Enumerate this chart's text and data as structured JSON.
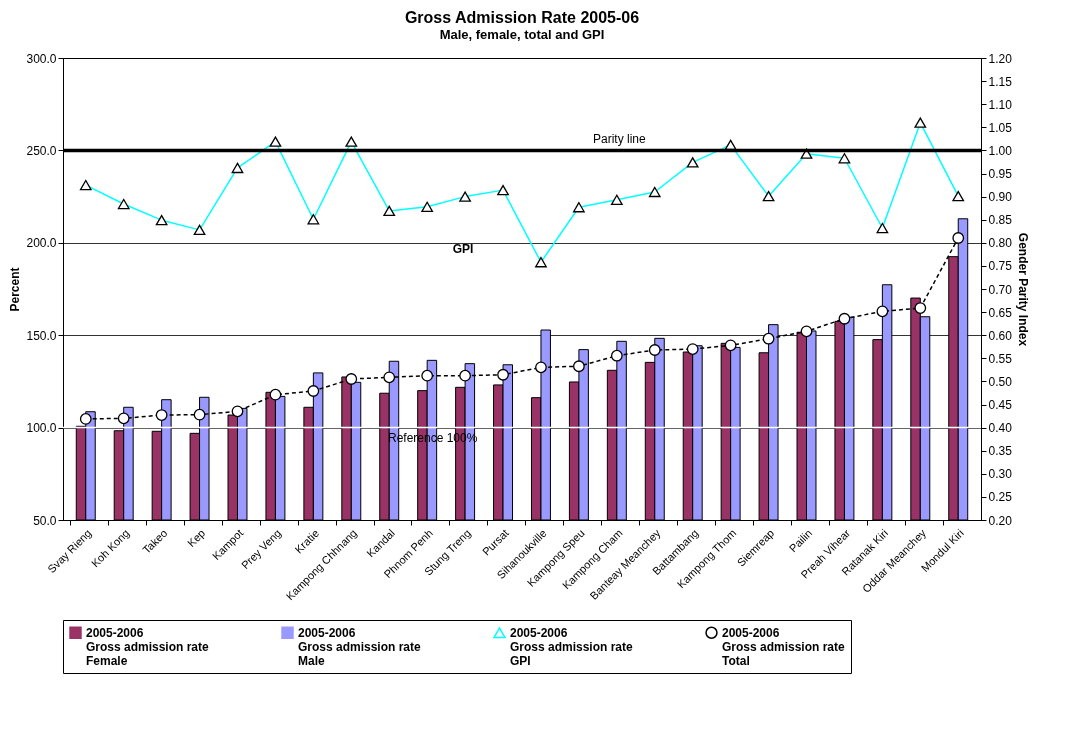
{
  "chart_data": {
    "type": "bar",
    "title": "Gross Admission Rate 2005-06",
    "subtitle": "Male, female, total and GPI",
    "ylabel": "Percent",
    "y2label": "Gender Parity Index",
    "categories": [
      "Svay Rieng",
      "Koh Kong",
      "Takeo",
      "Kep",
      "Kampot",
      "Prey Veng",
      "Kratie",
      "Kampong Chhnang",
      "Kandal",
      "Phnom Penh",
      "Stung Treng",
      "Pursat",
      "Sihanoukville",
      "Kampong Speu",
      "Kampong Cham",
      "Banteay Meanchey",
      "Battambang",
      "Kampong Thom",
      "Siemreap",
      "Pailin",
      "Preah Vihear",
      "Ratanak Kiri",
      "Oddar Meanchey",
      "Mondul Kiri"
    ],
    "series": [
      {
        "name": "2005-2006\nGross admission rate\nFemale",
        "type": "bar",
        "color": "#993366",
        "values": [
          100.7,
          98.3,
          98.0,
          96.9,
          106.8,
          119.1,
          111.0,
          127.4,
          118.6,
          120.0,
          121.8,
          123.1,
          116.2,
          124.7,
          131.0,
          135.3,
          140.9,
          145.6,
          140.5,
          151.6,
          157.5,
          147.6,
          170.1,
          192.5
        ]
      },
      {
        "name": "2005-2006\nGross admission rate\nMale",
        "type": "bar",
        "color": "#9999ff",
        "values": [
          108.6,
          111.0,
          115.1,
          116.4,
          110.4,
          116.9,
          129.6,
          124.5,
          135.9,
          136.4,
          134.6,
          134.0,
          152.8,
          142.2,
          146.7,
          148.3,
          144.3,
          143.4,
          155.7,
          152.3,
          159.7,
          177.3,
          160.0,
          213.0
        ]
      },
      {
        "name": "2005-2006\nGross admission rate\nGPI",
        "type": "line",
        "axis": "y2",
        "color": "#00ffff",
        "marker": "triangle",
        "line_style": "solid",
        "values": [
          0.925,
          0.884,
          0.849,
          0.828,
          0.962,
          1.019,
          0.851,
          1.019,
          0.869,
          0.878,
          0.9,
          0.914,
          0.758,
          0.877,
          0.893,
          0.91,
          0.974,
          1.012,
          0.901,
          0.993,
          0.983,
          0.832,
          1.06,
          0.901
        ]
      },
      {
        "name": "2005-2006\nGross admission rate\nTotal",
        "type": "line",
        "color": "#000000",
        "marker": "circle",
        "line_style": "dashed",
        "values": [
          104.7,
          105.0,
          106.8,
          107.0,
          108.8,
          117.8,
          119.8,
          126.3,
          127.2,
          128.1,
          128.1,
          128.6,
          132.6,
          133.2,
          138.9,
          142.0,
          142.5,
          144.5,
          148.1,
          152.1,
          158.9,
          162.9,
          164.7,
          202.6
        ]
      }
    ],
    "ylim": [
      50,
      300
    ],
    "yticks": [
      {
        "value": 50,
        "label": "50.0"
      },
      {
        "value": 100,
        "label": "100.0"
      },
      {
        "value": 150,
        "label": "150.0"
      },
      {
        "value": 200,
        "label": "200.0"
      },
      {
        "value": 250,
        "label": "250.0"
      },
      {
        "value": 300,
        "label": "300.0"
      }
    ],
    "y2lim": [
      0.2,
      1.2
    ],
    "y2ticks": [
      {
        "value": 0.2,
        "label": "0.20"
      },
      {
        "value": 0.25,
        "label": "0.25"
      },
      {
        "value": 0.3,
        "label": "0.30"
      },
      {
        "value": 0.35,
        "label": "0.35"
      },
      {
        "value": 0.4,
        "label": "0.40"
      },
      {
        "value": 0.45,
        "label": "0.45"
      },
      {
        "value": 0.5,
        "label": "0.50"
      },
      {
        "value": 0.55,
        "label": "0.55"
      },
      {
        "value": 0.6,
        "label": "0.60"
      },
      {
        "value": 0.65,
        "label": "0.65"
      },
      {
        "value": 0.7,
        "label": "0.70"
      },
      {
        "value": 0.75,
        "label": "0.75"
      },
      {
        "value": 0.8,
        "label": "0.80"
      },
      {
        "value": 0.85,
        "label": "0.85"
      },
      {
        "value": 0.9,
        "label": "0.90"
      },
      {
        "value": 0.95,
        "label": "0.95"
      },
      {
        "value": 1.0,
        "label": "1.00"
      },
      {
        "value": 1.05,
        "label": "1.05"
      },
      {
        "value": 1.1,
        "label": "1.10"
      },
      {
        "value": 1.15,
        "label": "1.15"
      },
      {
        "value": 1.2,
        "label": "1.20"
      }
    ],
    "ref_lines": [
      {
        "axis": "y",
        "value": 100,
        "label": "Reference 100%",
        "color": "#ffffff"
      },
      {
        "axis": "y2",
        "value": 1.0,
        "label": "Parity line",
        "color": "#000000"
      }
    ],
    "annotations": [
      "GPI"
    ],
    "grid": "y",
    "legend": "bottom"
  }
}
